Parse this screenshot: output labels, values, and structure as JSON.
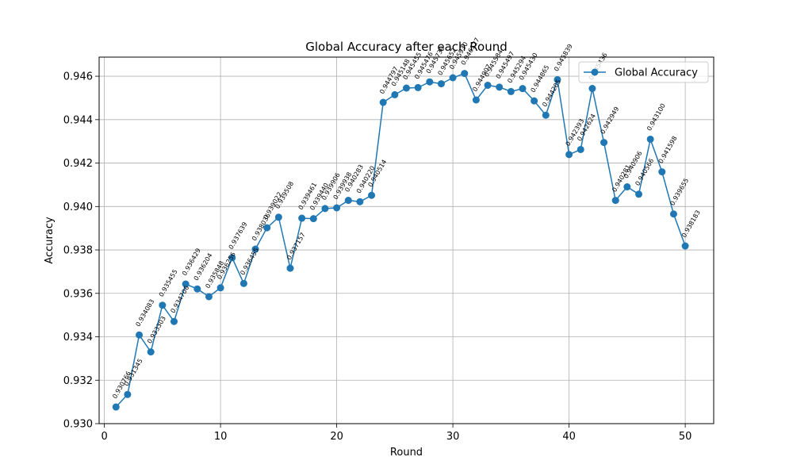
{
  "chart_data": {
    "type": "line",
    "title": "Global Accuracy after each Round",
    "xlabel": "Round",
    "ylabel": "Accuracy",
    "xlim": [
      -0.45,
      52.45
    ],
    "ylim": [
      0.93,
      0.94688
    ],
    "xticks": [
      0,
      10,
      20,
      30,
      40,
      50
    ],
    "yticks": [
      0.93,
      0.932,
      0.934,
      0.936,
      0.938,
      0.94,
      0.942,
      0.944,
      0.946
    ],
    "grid": true,
    "legend": {
      "position": "top-right",
      "entries": [
        "Global Accuracy"
      ]
    },
    "color": "#1f77b4",
    "series": [
      {
        "name": "Global Accuracy",
        "x": [
          1,
          2,
          3,
          4,
          5,
          6,
          7,
          8,
          9,
          10,
          11,
          12,
          13,
          14,
          15,
          16,
          17,
          18,
          19,
          20,
          21,
          22,
          23,
          24,
          25,
          26,
          27,
          28,
          29,
          30,
          31,
          32,
          33,
          34,
          35,
          36,
          37,
          38,
          39,
          40,
          41,
          42,
          43,
          44,
          45,
          46,
          47,
          48,
          49,
          50
        ],
        "y": [
          0.930766,
          0.931345,
          0.934083,
          0.933303,
          0.935455,
          0.934706,
          0.936429,
          0.936204,
          0.935848,
          0.936256,
          0.937639,
          0.936455,
          0.938036,
          0.939022,
          0.939508,
          0.937157,
          0.939461,
          0.93944,
          0.939906,
          0.939938,
          0.940283,
          0.94022,
          0.940514,
          0.944797,
          0.945148,
          0.945455,
          0.945476,
          0.945739,
          0.945652,
          0.94593,
          0.946127,
          0.944907,
          0.945584,
          0.945497,
          0.945294,
          0.94543,
          0.944865,
          0.944205,
          0.945839,
          0.942393,
          0.942624,
          0.945436,
          0.942949,
          0.940281,
          0.940906,
          0.940566,
          0.9431,
          0.941598,
          0.939655,
          0.938183
        ],
        "labels": [
          "0.930766",
          "0.931345",
          "0.934083",
          "0.933303",
          "0.935455",
          "0.934706",
          "0.936429",
          "0.936204",
          "0.935848",
          "0.936256",
          "0.937639",
          "0.936455",
          "0.938036",
          "0.939022",
          "0.939508",
          "0.937157",
          "0.939461",
          "0.939440",
          "0.939906",
          "0.939938",
          "0.940283",
          "0.940220",
          "0.940514",
          "0.944797",
          "0.945148",
          "0.945455",
          "0.945476",
          "0.945739",
          "0.945652",
          "0.945930",
          "0.946127",
          "0.944907",
          "0.945584",
          "0.945497",
          "0.945294",
          "0.945430",
          "0.944865",
          "0.944205",
          "0.945839",
          "0.942393",
          "0.942624",
          "0.945436",
          "0.942949",
          "0.940281",
          "0.940906",
          "0.940566",
          "0.943100",
          "0.941598",
          "0.939655",
          "0.938183"
        ]
      }
    ]
  }
}
